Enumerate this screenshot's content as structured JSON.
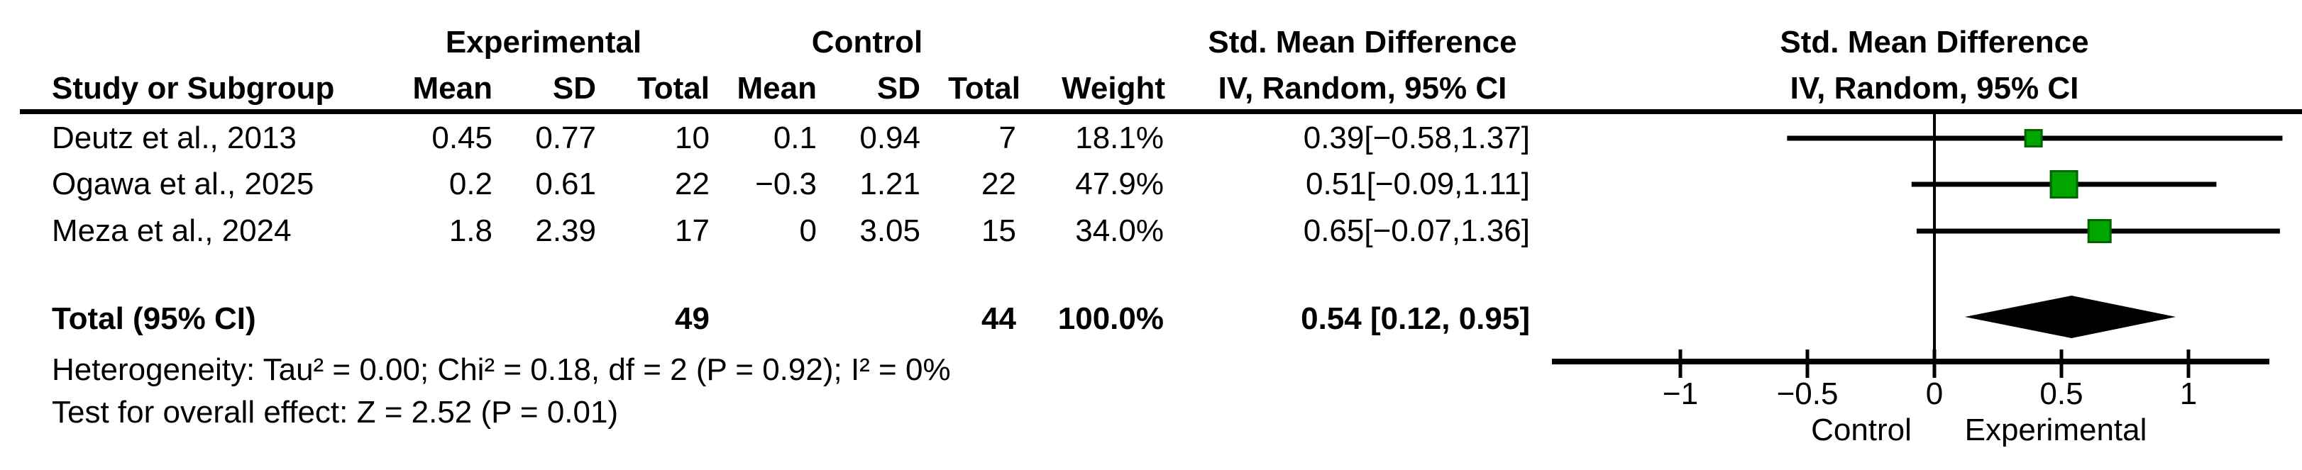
{
  "headers": {
    "group_experimental": "Experimental",
    "group_control": "Control",
    "col_study": "Study or Subgroup",
    "col_mean": "Mean",
    "col_sd": "SD",
    "col_total": "Total",
    "col_weight": "Weight",
    "smd_title": "Std. Mean Difference",
    "smd_subtitle": "IV, Random, 95% CI"
  },
  "footer": {
    "total_label": "Total (95% CI)",
    "total_exp": "49",
    "total_ctl": "44",
    "total_weight": "100.0%",
    "total_ci": "0.54 [0.12, 0.95]",
    "heterogeneity": "Heterogeneity: Tau² = 0.00; Chi² = 0.18, df = 2 (P = 0.92); I² = 0%",
    "overall_effect": "Test for overall effect: Z = 2.52 (P = 0.01)"
  },
  "chart_data": {
    "type": "forest",
    "effect_measure": "Std. Mean Difference",
    "model": "IV, Random, 95% CI",
    "studies": [
      {
        "name": "Deutz et al., 2013",
        "exp_mean": "0.45",
        "exp_sd": "0.77",
        "exp_total": "10",
        "ctl_mean": "0.1",
        "ctl_sd": "0.94",
        "ctl_total": "7",
        "weight": "18.1%",
        "ci_text": "0.39[−0.58,1.37]",
        "estimate": 0.39,
        "ci_low": -0.58,
        "ci_high": 1.37,
        "weight_value": 18.1
      },
      {
        "name": "Ogawa et al., 2025",
        "exp_mean": "0.2",
        "exp_sd": "0.61",
        "exp_total": "22",
        "ctl_mean": "−0.3",
        "ctl_sd": "1.21",
        "ctl_total": "22",
        "weight": "47.9%",
        "ci_text": "0.51[−0.09,1.11]",
        "estimate": 0.51,
        "ci_low": -0.09,
        "ci_high": 1.11,
        "weight_value": 47.9
      },
      {
        "name": "Meza et al., 2024",
        "exp_mean": "1.8",
        "exp_sd": "2.39",
        "exp_total": "17",
        "ctl_mean": "0",
        "ctl_sd": "3.05",
        "ctl_total": "15",
        "weight": "34.0%",
        "ci_text": "0.65[−0.07,1.36]",
        "estimate": 0.65,
        "ci_low": -0.07,
        "ci_high": 1.36,
        "weight_value": 34.0
      }
    ],
    "total": {
      "estimate": 0.54,
      "ci_low": 0.12,
      "ci_high": 0.95
    },
    "axis": {
      "ticks": [
        -1,
        -0.5,
        0,
        0.5,
        1
      ],
      "tick_labels": [
        "−1",
        "−0.5",
        "0",
        "0.5",
        "1"
      ],
      "xlim": [
        -1.5,
        1.45
      ],
      "xlabel_left": "Control",
      "xlabel_right": "Experimental"
    },
    "colors": {
      "square": "#00a500",
      "square_border": "#006400",
      "line": "#000000",
      "diamond": "#000000"
    }
  }
}
